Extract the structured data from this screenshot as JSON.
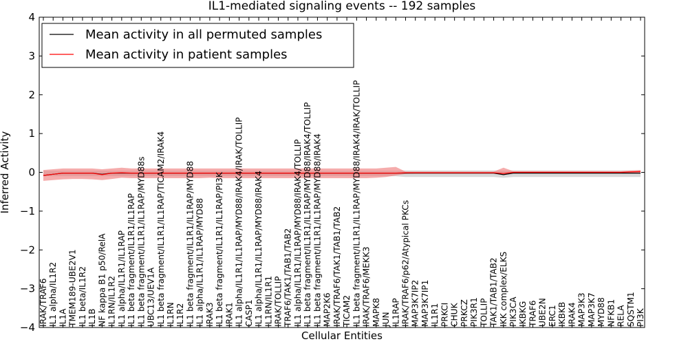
{
  "chart_data": {
    "type": "line",
    "title": "IL1-mediated signaling events -- 192 samples",
    "xlabel": "Cellular Entities",
    "ylabel": "Inferred Activity",
    "ylim": [
      -4,
      4
    ],
    "yticks": [
      "−4",
      "−3",
      "−2",
      "−1",
      "0",
      "1",
      "2",
      "3",
      "4"
    ],
    "grid": false,
    "legend_position": "top-left",
    "colors": {
      "permuted": "#000000",
      "patient": "#ff0000",
      "patient_band": "#f08080",
      "permuted_band": "#c8c8c8"
    },
    "categories": [
      "IRAK/TRAF6",
      "IL1 alpha/IL1R2",
      "IL1A",
      "TMEM189-UBE2V1",
      "IL1 beta/IL1R2",
      "IL1B",
      "NF kappa B1 p50/RelA",
      "IL1RN/IL1R2",
      "IL1 alpha/IL1R1/IL1RAP",
      "IL1 beta fragment/IL1R1/IL1RAP",
      "IL1 beta fragment/IL1R1/IL1RAP/MYD88s",
      "UBC13/UEV1A",
      "IL1 beta fragment/IL1R1/IL1RAP/TICAM2/IRAK4",
      "IL1RN",
      "IL1R2",
      "IL1 beta fragment/IL1R1/IL1RAP/MYD88",
      "IL1 alpha/IL1R1/IL1RAP/MYD88",
      "IRAK3",
      "IL1 beta fragment/IL1R1/IL1RAP/PI3K",
      "IRAK1",
      "IL1 alpha/IL1R1/IL1RAP/MYD88/IRAK4/IRAK/TOLLIP",
      "CASP1",
      "IL1 alpha/IL1R1/IL1RAP/MYD88/IRAK4",
      "IL1RN/IL1R1",
      "IRAK/TOLLIP",
      "TRAF6/TAK1/TAB1/TAB2",
      "IL1 alpha/IL1R1/IL1RAP/MYD88/IRAK4/TOLLIP",
      "IL1 beta fragment/IL1R1/IL1RAP/MYD88/IRAK4/TOLLIP",
      "IL1 beta fragment/IL1R1/IL1RAP/MYD88/IRAK4",
      "MAP2K6",
      "IRAK/TRAF6/TAK1/TAB1/TAB2",
      "TICAM2",
      "IL1 beta fragment/IL1R1/IL1RAP/MYD88/IRAK4/IRAK/TOLLIP",
      "IRAK/TRAF6/MEKK3",
      "MAPK8",
      "JUN",
      "IL1RAP",
      "IRAK/TRAF6/p62/Atypical PKCs",
      "MAP3K7IP2",
      "MAP3K7IP1",
      "IL1R1",
      "PRKCI",
      "CHUK",
      "PRKCZ",
      "PIK3R1",
      "TOLLIP",
      "TAK1/TAB1/TAB2",
      "IKK complex/ELKS",
      "PIK3CA",
      "IKBKG",
      "TRAF6",
      "UBE2N",
      "ERC1",
      "IKBKB",
      "IRAK4",
      "MAP3K3",
      "MAP3K7",
      "MYD88",
      "NFKB1",
      "RELA",
      "SQSTM1",
      "PI3K"
    ],
    "series": [
      {
        "name": "Mean activity in all permuted samples",
        "values": [
          -0.08,
          -0.05,
          -0.02,
          -0.02,
          -0.02,
          -0.02,
          -0.05,
          -0.02,
          -0.02,
          -0.02,
          -0.02,
          -0.02,
          -0.02,
          -0.02,
          -0.02,
          -0.02,
          -0.02,
          -0.02,
          -0.02,
          -0.02,
          -0.02,
          -0.02,
          -0.02,
          -0.02,
          -0.02,
          -0.02,
          -0.02,
          -0.02,
          -0.02,
          -0.02,
          -0.02,
          -0.02,
          -0.02,
          -0.02,
          -0.02,
          -0.02,
          -0.02,
          -0.02,
          -0.02,
          -0.02,
          -0.02,
          -0.02,
          -0.02,
          -0.02,
          -0.02,
          -0.02,
          -0.02,
          -0.06,
          -0.02,
          -0.02,
          -0.02,
          -0.02,
          -0.02,
          -0.02,
          -0.02,
          -0.02,
          -0.02,
          -0.02,
          -0.02,
          -0.02,
          -0.02,
          -0.02
        ],
        "band_low": [
          -0.1,
          -0.1,
          -0.1,
          -0.1,
          -0.1,
          -0.1,
          -0.1,
          -0.1,
          -0.1,
          -0.1,
          -0.1,
          -0.1,
          -0.1,
          -0.1,
          -0.1,
          -0.1,
          -0.1,
          -0.1,
          -0.1,
          -0.1,
          -0.1,
          -0.1,
          -0.1,
          -0.1,
          -0.1,
          -0.1,
          -0.1,
          -0.1,
          -0.1,
          -0.1,
          -0.1,
          -0.1,
          -0.1,
          -0.1,
          -0.1,
          -0.1,
          -0.1,
          -0.12,
          -0.12,
          -0.12,
          -0.12,
          -0.12,
          -0.12,
          -0.12,
          -0.12,
          -0.12,
          -0.12,
          -0.14,
          -0.12,
          -0.12,
          -0.12,
          -0.12,
          -0.12,
          -0.12,
          -0.12,
          -0.12,
          -0.12,
          -0.12,
          -0.12,
          -0.12,
          -0.12,
          -0.12
        ],
        "band_high": [
          0.04,
          0.04,
          0.04,
          0.04,
          0.04,
          0.04,
          0.04,
          0.04,
          0.04,
          0.04,
          0.04,
          0.04,
          0.04,
          0.04,
          0.04,
          0.04,
          0.04,
          0.04,
          0.04,
          0.04,
          0.04,
          0.04,
          0.04,
          0.04,
          0.04,
          0.04,
          0.04,
          0.04,
          0.04,
          0.04,
          0.04,
          0.04,
          0.04,
          0.04,
          0.04,
          0.04,
          0.04,
          0.05,
          0.05,
          0.05,
          0.05,
          0.05,
          0.05,
          0.05,
          0.05,
          0.05,
          0.05,
          0.04,
          0.05,
          0.05,
          0.05,
          0.05,
          0.05,
          0.05,
          0.05,
          0.05,
          0.05,
          0.05,
          0.05,
          0.05,
          0.05,
          0.05
        ]
      },
      {
        "name": "Mean activity in patient samples",
        "values": [
          -0.08,
          -0.05,
          -0.02,
          -0.02,
          -0.02,
          -0.02,
          -0.06,
          -0.02,
          -0.01,
          -0.02,
          -0.02,
          -0.02,
          -0.02,
          -0.02,
          -0.02,
          -0.02,
          -0.02,
          -0.02,
          -0.02,
          -0.02,
          -0.02,
          -0.02,
          -0.02,
          -0.02,
          -0.02,
          -0.02,
          -0.02,
          -0.02,
          -0.02,
          -0.02,
          -0.02,
          -0.02,
          -0.02,
          -0.02,
          -0.02,
          -0.02,
          -0.02,
          -0.01,
          -0.01,
          -0.01,
          -0.01,
          -0.01,
          -0.01,
          -0.01,
          -0.01,
          -0.01,
          -0.01,
          -0.03,
          0.0,
          0.0,
          0.0,
          0.0,
          0.0,
          0.0,
          0.0,
          0.0,
          0.0,
          0.0,
          0.0,
          0.0,
          0.01,
          0.02
        ],
        "band_low": [
          -0.22,
          -0.2,
          -0.18,
          -0.17,
          -0.17,
          -0.18,
          -0.2,
          -0.17,
          -0.14,
          -0.15,
          -0.15,
          -0.15,
          -0.15,
          -0.15,
          -0.15,
          -0.15,
          -0.15,
          -0.14,
          -0.15,
          -0.15,
          -0.15,
          -0.15,
          -0.15,
          -0.15,
          -0.15,
          -0.15,
          -0.15,
          -0.15,
          -0.15,
          -0.15,
          -0.15,
          -0.15,
          -0.15,
          -0.15,
          -0.14,
          -0.12,
          -0.08,
          -0.04,
          -0.03,
          -0.03,
          -0.03,
          -0.03,
          -0.03,
          -0.03,
          -0.03,
          -0.03,
          -0.03,
          -0.06,
          -0.02,
          -0.02,
          -0.02,
          -0.02,
          -0.02,
          -0.02,
          -0.02,
          -0.02,
          -0.02,
          -0.02,
          -0.02,
          -0.02,
          -0.02,
          -0.02
        ],
        "band_high": [
          0.06,
          0.08,
          0.1,
          0.1,
          0.1,
          0.1,
          0.08,
          0.1,
          0.12,
          0.1,
          0.1,
          0.1,
          0.1,
          0.1,
          0.1,
          0.1,
          0.1,
          0.1,
          0.1,
          0.1,
          0.1,
          0.1,
          0.1,
          0.1,
          0.1,
          0.1,
          0.1,
          0.1,
          0.1,
          0.1,
          0.1,
          0.1,
          0.1,
          0.1,
          0.1,
          0.12,
          0.14,
          0.02,
          0.02,
          0.02,
          0.02,
          0.02,
          0.02,
          0.02,
          0.02,
          0.02,
          0.02,
          0.12,
          0.03,
          0.03,
          0.03,
          0.03,
          0.03,
          0.03,
          0.03,
          0.03,
          0.03,
          0.03,
          0.03,
          0.03,
          0.05,
          0.06
        ]
      }
    ]
  }
}
